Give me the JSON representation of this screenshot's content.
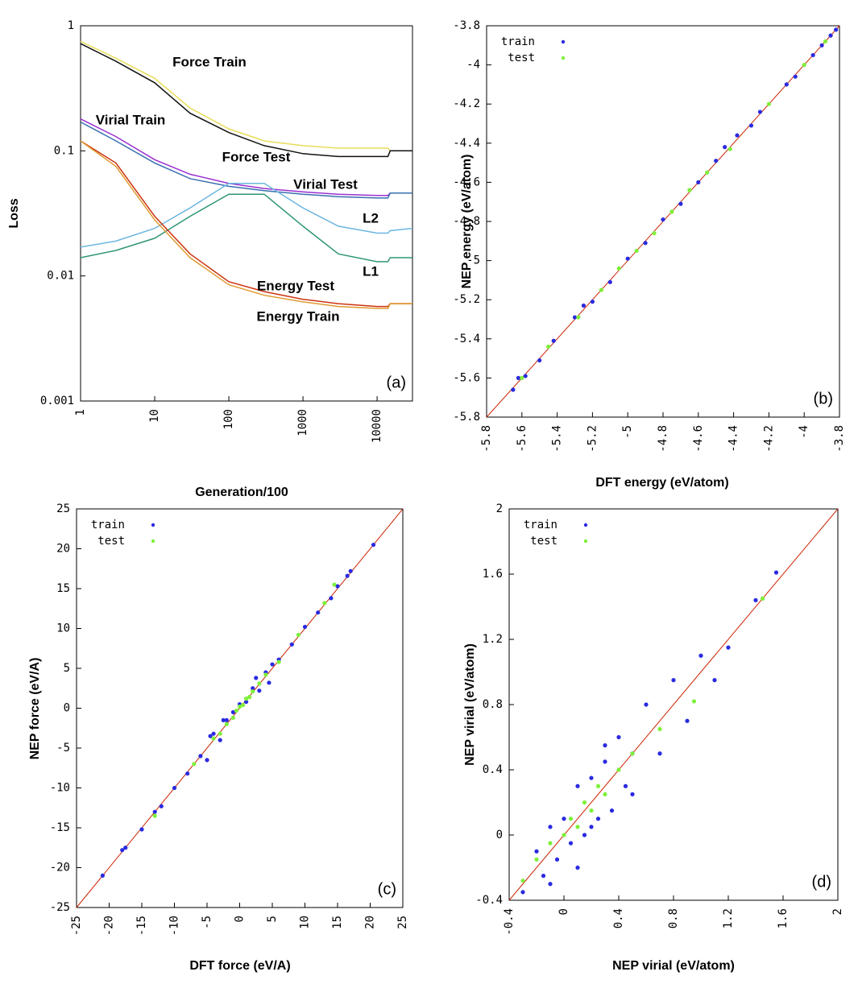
{
  "chart_data": [
    {
      "type": "line",
      "xscale": "log",
      "yscale": "log",
      "x_label": "Generation/100",
      "y_label": "Loss",
      "label": "(a)",
      "xlim": [
        1,
        30000
      ],
      "ylim": [
        0.001,
        1
      ],
      "xticks": [
        1,
        10,
        100,
        1000,
        10000
      ],
      "yticks": [
        0.001,
        0.01,
        0.1,
        1
      ],
      "x": [
        1,
        3,
        10,
        30,
        100,
        300,
        1000,
        3000,
        10000,
        14000,
        15000,
        30000
      ],
      "series": [
        {
          "name": "Force Train",
          "color": "#e8dc5a",
          "values": [
            0.75,
            0.55,
            0.38,
            0.22,
            0.15,
            0.12,
            0.11,
            0.105,
            0.105,
            0.105,
            0.1,
            0.1
          ]
        },
        {
          "name": "Force Test",
          "color": "#111111",
          "values": [
            0.72,
            0.52,
            0.35,
            0.2,
            0.14,
            0.11,
            0.095,
            0.09,
            0.09,
            0.09,
            0.1,
            0.1
          ]
        },
        {
          "name": "Virial Train",
          "color": "#9b30d0",
          "values": [
            0.18,
            0.13,
            0.085,
            0.065,
            0.055,
            0.05,
            0.047,
            0.045,
            0.044,
            0.044,
            0.046,
            0.046
          ]
        },
        {
          "name": "Virial Test",
          "color": "#3a6fb0",
          "values": [
            0.17,
            0.12,
            0.08,
            0.06,
            0.052,
            0.048,
            0.045,
            0.043,
            0.042,
            0.042,
            0.046,
            0.046
          ]
        },
        {
          "name": "L2",
          "color": "#6cb6e0",
          "values": [
            0.017,
            0.019,
            0.024,
            0.035,
            0.055,
            0.055,
            0.035,
            0.025,
            0.022,
            0.022,
            0.023,
            0.024
          ]
        },
        {
          "name": "L1",
          "color": "#2f9676",
          "values": [
            0.014,
            0.016,
            0.02,
            0.03,
            0.045,
            0.045,
            0.025,
            0.015,
            0.013,
            0.013,
            0.014,
            0.014
          ]
        },
        {
          "name": "Energy Test",
          "color": "#cc3311",
          "values": [
            0.12,
            0.08,
            0.03,
            0.015,
            0.009,
            0.0075,
            0.0065,
            0.006,
            0.0057,
            0.0057,
            0.006,
            0.006
          ]
        },
        {
          "name": "Energy Train",
          "color": "#e09a30",
          "values": [
            0.12,
            0.075,
            0.028,
            0.014,
            0.0085,
            0.007,
            0.0062,
            0.0057,
            0.0055,
            0.0055,
            0.006,
            0.006
          ]
        }
      ]
    },
    {
      "type": "scatter",
      "x_label": "DFT energy (eV/atom)",
      "y_label": "NEP energy (eV/atom)",
      "label": "(b)",
      "xlim": [
        -5.8,
        -3.8
      ],
      "ylim": [
        -5.8,
        -3.8
      ],
      "xticks": [
        -5.8,
        -5.6,
        -5.4,
        -5.2,
        -5,
        -4.8,
        -4.6,
        -4.4,
        -4.2,
        -4,
        -3.8
      ],
      "yticks": [
        -5.8,
        -5.6,
        -5.4,
        -5.2,
        -5,
        -4.8,
        -4.6,
        -4.4,
        -4.2,
        -4,
        -3.8
      ],
      "diagonal": true,
      "diagonal_color": "#cc2200",
      "legend": "top-left",
      "series": [
        {
          "name": "train",
          "color": "#2a2ae0",
          "x": [
            -5.65,
            -5.62,
            -5.58,
            -5.5,
            -5.42,
            -5.3,
            -5.25,
            -5.2,
            -5.1,
            -5.0,
            -4.9,
            -4.8,
            -4.7,
            -4.6,
            -4.5,
            -4.45,
            -4.38,
            -4.3,
            -4.25,
            -4.1,
            -4.05,
            -3.95,
            -3.9,
            -3.85,
            -3.82
          ],
          "values": [
            -5.66,
            -5.6,
            -5.59,
            -5.51,
            -5.41,
            -5.29,
            -5.23,
            -5.21,
            -5.11,
            -4.99,
            -4.91,
            -4.79,
            -4.71,
            -4.6,
            -4.49,
            -4.42,
            -4.36,
            -4.31,
            -4.24,
            -4.1,
            -4.06,
            -3.95,
            -3.9,
            -3.85,
            -3.82
          ]
        },
        {
          "name": "test",
          "color": "#7ef03a",
          "x": [
            -5.6,
            -5.45,
            -5.28,
            -5.15,
            -5.05,
            -4.95,
            -4.85,
            -4.75,
            -4.65,
            -4.55,
            -4.42,
            -4.2,
            -4.0,
            -3.88
          ],
          "values": [
            -5.6,
            -5.44,
            -5.29,
            -5.15,
            -5.04,
            -4.95,
            -4.86,
            -4.75,
            -4.64,
            -4.55,
            -4.43,
            -4.2,
            -4.0,
            -3.88
          ]
        }
      ]
    },
    {
      "type": "scatter",
      "x_label": "DFT force (eV/A)",
      "y_label": "NEP force (eV/A)",
      "label": "(c)",
      "xlim": [
        -25,
        25
      ],
      "ylim": [
        -25,
        25
      ],
      "xticks": [
        -25,
        -20,
        -15,
        -10,
        -5,
        0,
        5,
        10,
        15,
        20,
        25
      ],
      "yticks": [
        -25,
        -20,
        -15,
        -10,
        -5,
        0,
        5,
        10,
        15,
        20,
        25
      ],
      "diagonal": true,
      "diagonal_color": "#cc2200",
      "legend": "top-left",
      "series": [
        {
          "name": "train",
          "color": "#2a2ae0",
          "x": [
            -21,
            -18,
            -17.5,
            -15,
            -13,
            -12,
            -10,
            -8,
            -6,
            -5,
            -4,
            -3,
            -2,
            -1,
            0,
            1,
            2,
            3,
            4,
            5,
            6,
            8,
            10,
            12,
            14,
            15,
            16.5,
            17,
            20.5,
            -2.5,
            2.5,
            -4.5,
            4.5
          ],
          "values": [
            -21,
            -17.8,
            -17.5,
            -15.2,
            -13,
            -12.3,
            -10,
            -8.2,
            -6,
            -6.5,
            -3.2,
            -4,
            -1.5,
            -0.5,
            0.5,
            0.8,
            2.5,
            2.2,
            4.5,
            5.5,
            6.1,
            8,
            10.2,
            12,
            13.8,
            15.3,
            16.6,
            17.2,
            20.5,
            -1.5,
            3.8,
            -3.5,
            3.2
          ]
        },
        {
          "name": "test",
          "color": "#7ef03a",
          "x": [
            -13,
            -7,
            -4,
            -3,
            -2,
            -1,
            -0.5,
            0,
            0.5,
            1,
            1.5,
            2,
            3,
            4,
            6,
            9,
            13,
            14.5
          ],
          "values": [
            -13.5,
            -7,
            -3.8,
            -3.2,
            -2,
            -1.2,
            -0.3,
            0.2,
            0.4,
            1.2,
            1.4,
            2.1,
            3.1,
            4.2,
            5.8,
            9.2,
            13.2,
            15.5
          ]
        }
      ]
    },
    {
      "type": "scatter",
      "x_label": "NEP virial (eV/atom)",
      "y_label": "NEP virial (eV/atom)",
      "label": "(d)",
      "xlim": [
        -0.4,
        2
      ],
      "ylim": [
        -0.4,
        2
      ],
      "xticks": [
        -0.4,
        0,
        0.4,
        0.8,
        1.2,
        1.6,
        2
      ],
      "yticks": [
        -0.4,
        0,
        0.4,
        0.8,
        1.2,
        1.6,
        2
      ],
      "diagonal": true,
      "diagonal_color": "#cc2200",
      "legend": "top-left",
      "series": [
        {
          "name": "train",
          "color": "#2a2ae0",
          "x": [
            -0.3,
            -0.2,
            -0.15,
            -0.1,
            -0.05,
            0,
            0.05,
            0.1,
            0.15,
            0.2,
            0.25,
            0.3,
            0.35,
            0.4,
            0.45,
            0.5,
            0.6,
            0.7,
            0.8,
            0.9,
            1.0,
            1.1,
            1.2,
            1.4,
            1.55,
            -0.1,
            0.1,
            0.2,
            0.3,
            0.5
          ],
          "values": [
            -0.35,
            -0.1,
            -0.25,
            0.05,
            -0.15,
            0.1,
            -0.05,
            0.3,
            0.0,
            0.35,
            0.1,
            0.45,
            0.15,
            0.6,
            0.3,
            0.5,
            0.8,
            0.5,
            0.95,
            0.7,
            1.1,
            0.95,
            1.15,
            1.44,
            1.61,
            -0.3,
            -0.2,
            0.05,
            0.55,
            0.25
          ]
        },
        {
          "name": "test",
          "color": "#7ef03a",
          "x": [
            -0.3,
            -0.2,
            -0.1,
            0,
            0.05,
            0.1,
            0.15,
            0.2,
            0.25,
            0.3,
            0.4,
            0.5,
            0.7,
            0.95,
            1.45
          ],
          "values": [
            -0.28,
            -0.15,
            -0.05,
            0.0,
            0.1,
            0.05,
            0.2,
            0.15,
            0.3,
            0.25,
            0.4,
            0.5,
            0.65,
            0.82,
            1.45
          ]
        }
      ]
    }
  ]
}
